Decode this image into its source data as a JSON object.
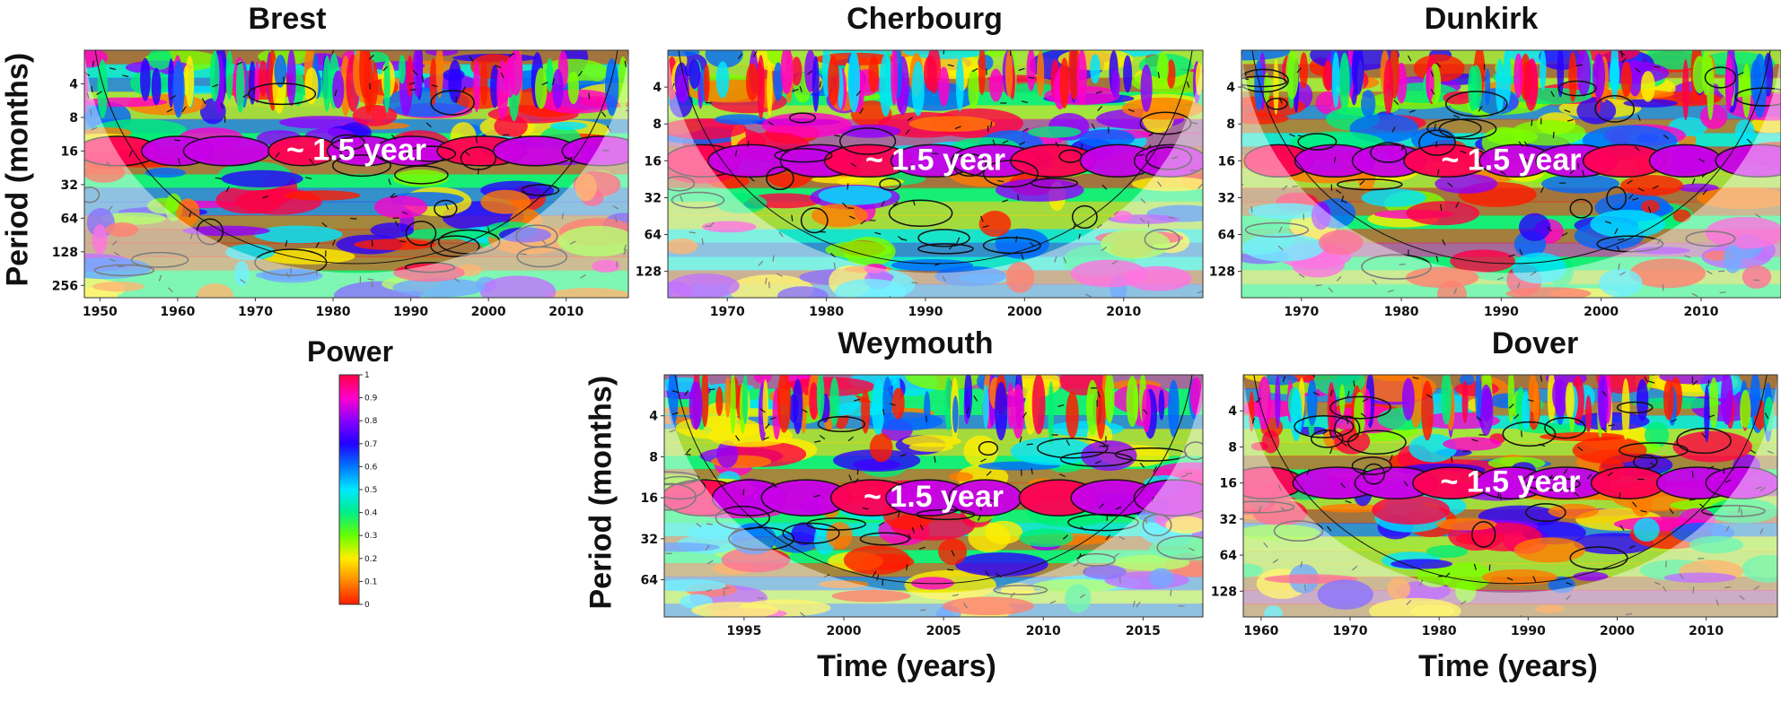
{
  "colorbar": {
    "title": "Power",
    "ticks": [
      "0",
      "0.1",
      "0.2",
      "0.3",
      "0.4",
      "0.5",
      "0.6",
      "0.7",
      "0.8",
      "0.9",
      "1"
    ],
    "colors": [
      "#ff1a00",
      "#ff8800",
      "#ffee00",
      "#66ff00",
      "#00ee88",
      "#00e8ff",
      "#0077ff",
      "#2200ff",
      "#8800ff",
      "#ff00cc",
      "#ff0044"
    ]
  },
  "axis_labels": {
    "period_top": "Period (months)",
    "period_bottom": "Period (months)",
    "time_left": "Time (years)",
    "time_right": "Time (years)"
  },
  "chart_data": [
    {
      "type": "heatmap",
      "title": "Brest",
      "annotation": "~ 1.5 year",
      "x_range": [
        1948,
        2018
      ],
      "x_ticks": [
        1950,
        1960,
        1970,
        1980,
        1990,
        2000,
        2010
      ],
      "y_scale": "log2",
      "y_range": [
        2,
        330
      ],
      "y_ticks": [
        4,
        8,
        16,
        32,
        64,
        128,
        256
      ],
      "ylabel": "Period (months)"
    },
    {
      "type": "heatmap",
      "title": "Cherbourg",
      "annotation": "~ 1.5 year",
      "x_range": [
        1964,
        2018
      ],
      "x_ticks": [
        1970,
        1980,
        1990,
        2000,
        2010
      ],
      "y_scale": "log2",
      "y_range": [
        2,
        210
      ],
      "y_ticks": [
        4,
        8,
        16,
        32,
        64,
        128
      ]
    },
    {
      "type": "heatmap",
      "title": "Dunkirk",
      "annotation": "~ 1.5 year",
      "x_range": [
        1964,
        2018
      ],
      "x_ticks": [
        1970,
        1980,
        1990,
        2000,
        2010
      ],
      "y_scale": "log2",
      "y_range": [
        2,
        210
      ],
      "y_ticks": [
        4,
        8,
        16,
        32,
        64,
        128
      ]
    },
    {
      "type": "heatmap",
      "title": "Weymouth",
      "annotation": "~ 1.5 year",
      "x_range": [
        1991,
        2018
      ],
      "x_ticks": [
        1995,
        2000,
        2005,
        2010,
        2015
      ],
      "y_scale": "log2",
      "y_range": [
        2,
        120
      ],
      "y_ticks": [
        4,
        8,
        16,
        32,
        64
      ],
      "ylabel": "Period (months)",
      "xlabel": "Time (years)"
    },
    {
      "type": "heatmap",
      "title": "Dover",
      "annotation": "~ 1.5 year",
      "x_range": [
        1958,
        2018
      ],
      "x_ticks": [
        1960,
        1970,
        1980,
        1990,
        2000,
        2010
      ],
      "y_scale": "log2",
      "y_range": [
        2,
        210
      ],
      "y_ticks": [
        4,
        8,
        16,
        32,
        64,
        128
      ],
      "xlabel": "Time (years)"
    }
  ]
}
